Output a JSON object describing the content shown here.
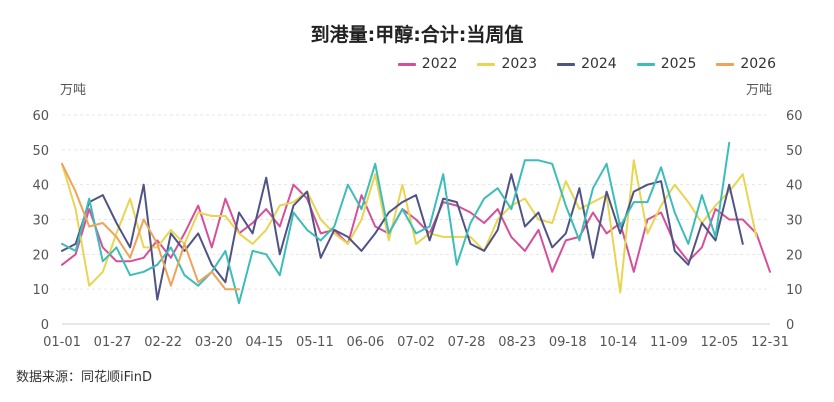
{
  "chart_data": {
    "type": "line",
    "title": "到港量:甲醇:合计:当周值",
    "unit_left": "万吨",
    "unit_right": "万吨",
    "ylim": [
      0,
      60
    ],
    "yticks": [
      "0",
      "10",
      "20",
      "30",
      "40",
      "50",
      "60"
    ],
    "xticks": [
      "01-01",
      "01-27",
      "02-22",
      "03-20",
      "04-15",
      "05-11",
      "06-06",
      "07-02",
      "07-28",
      "08-23",
      "09-18",
      "10-14",
      "11-09",
      "12-05",
      "12-31"
    ],
    "grid": true,
    "legend_position": "top-right",
    "source": "数据来源：同花顺iFinD",
    "series": [
      {
        "name": "2022",
        "color": "#d4509a",
        "values": [
          17,
          20,
          33,
          22,
          18,
          18,
          19,
          24,
          19,
          26,
          34,
          22,
          36,
          26,
          29,
          33,
          28,
          40,
          36,
          26,
          27,
          23,
          37,
          28,
          26,
          33,
          30,
          26,
          35,
          34,
          32,
          29,
          33,
          25,
          21,
          27,
          15,
          24,
          25,
          32,
          26,
          29,
          15,
          30,
          32,
          23,
          18,
          22,
          33,
          30,
          30,
          26,
          15
        ]
      },
      {
        "name": "2023",
        "color": "#e8d552",
        "values": [
          46,
          33,
          11,
          15,
          26,
          36,
          22,
          22,
          27,
          23,
          32,
          31,
          31,
          26,
          23,
          27,
          34,
          35,
          38,
          30,
          26,
          23,
          30,
          43,
          24,
          40,
          23,
          26,
          25,
          25,
          25,
          21,
          30,
          34,
          36,
          30,
          29,
          41,
          33,
          35,
          37,
          9,
          47,
          26,
          34,
          40,
          35,
          29,
          34,
          38,
          43,
          25
        ]
      },
      {
        "name": "2024",
        "color": "#4f5485",
        "values": [
          21,
          23,
          35,
          37,
          29,
          22,
          40,
          7,
          26,
          21,
          26,
          17,
          12,
          32,
          26,
          42,
          20,
          34,
          38,
          19,
          27,
          25,
          21,
          26,
          32,
          35,
          37,
          24,
          36,
          35,
          23,
          21,
          27,
          43,
          28,
          32,
          22,
          26,
          39,
          19,
          38,
          26,
          38,
          40,
          41,
          21,
          17,
          29,
          24,
          40,
          23
        ]
      },
      {
        "name": "2025",
        "color": "#3dbdb7",
        "values": [
          23,
          21,
          36,
          18,
          22,
          14,
          15,
          17,
          22,
          14,
          11,
          15,
          21,
          6,
          21,
          20,
          14,
          32,
          27,
          24,
          28,
          40,
          33,
          46,
          26,
          33,
          26,
          28,
          43,
          17,
          29,
          36,
          39,
          33,
          47,
          47,
          46,
          34,
          24,
          39,
          46,
          28,
          35,
          35,
          45,
          32,
          23,
          37,
          25,
          52
        ]
      },
      {
        "name": "2026",
        "color": "#eda35a",
        "values": [
          46,
          38,
          28,
          29,
          25,
          19,
          30,
          23,
          11,
          23,
          12,
          15,
          10,
          10
        ]
      }
    ]
  }
}
